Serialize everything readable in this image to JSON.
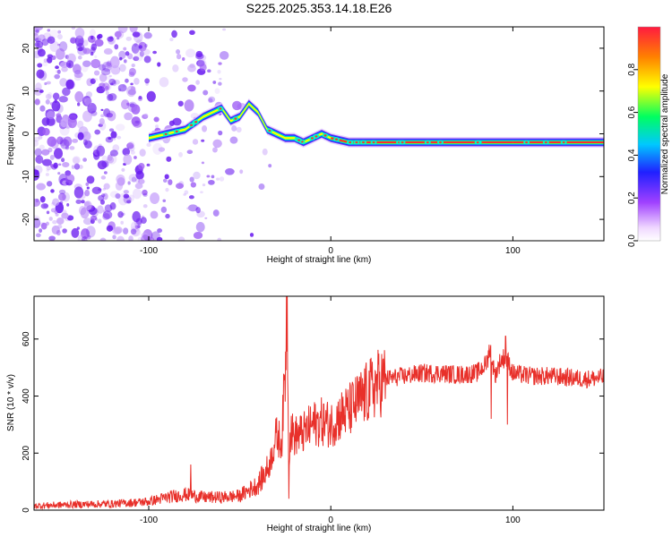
{
  "title": "S225.2025.353.14.18.E26",
  "colors": {
    "snr_line": "#e8302a",
    "spectrum_core": "#ff2a2a",
    "noise": "#7a3cf0",
    "axis": "#000000"
  },
  "chart_data": [
    {
      "type": "heatmap",
      "xlabel": "Height of straight line (km)",
      "ylabel": "Frequency (Hz)",
      "xlim": [
        -163,
        150
      ],
      "ylim": [
        -25,
        25
      ],
      "xticks": [
        -100,
        0,
        100
      ],
      "xtick_labels": [
        "-100",
        "0",
        "100"
      ],
      "yticks": [
        -20,
        -10,
        0,
        10,
        20
      ],
      "ytick_labels": [
        "-20",
        "-10",
        "0",
        "10",
        "20"
      ],
      "colorbar": {
        "label": "Normalized spectral amplitude",
        "range": [
          0,
          1
        ],
        "ticks": [
          0.0,
          0.2,
          0.4,
          0.6,
          0.8
        ],
        "tick_labels": [
          "0.0",
          "0.2",
          "0.4",
          "0.6",
          "0.8"
        ],
        "colormap": "rainbow"
      },
      "ridge": {
        "x": [
          -100,
          -90,
          -80,
          -70,
          -60,
          -55,
          -50,
          -45,
          -40,
          -35,
          -30,
          -25,
          -20,
          -15,
          -10,
          -5,
          0,
          10,
          20,
          40,
          60,
          80,
          100,
          120,
          150
        ],
        "freq": [
          -1,
          0,
          1,
          4,
          6,
          3,
          4,
          7,
          5,
          1,
          0,
          -1,
          -1,
          -2,
          -1,
          0,
          -1,
          -2,
          -2,
          -2,
          -2,
          -2,
          -2,
          -2,
          -2
        ]
      }
    },
    {
      "type": "line",
      "xlabel": "Height of straight line (km)",
      "ylabel": "SNR (10 * v/v)",
      "xlim": [
        -163,
        150
      ],
      "ylim": [
        0,
        750
      ],
      "xticks": [
        -100,
        0,
        100
      ],
      "xtick_labels": [
        "-100",
        "0",
        "100"
      ],
      "yticks": [
        0,
        200,
        400,
        600
      ],
      "ytick_labels": [
        "0",
        "200",
        "400",
        "600"
      ],
      "series": [
        {
          "name": "SNR",
          "x": [
            -163,
            -140,
            -120,
            -100,
            -90,
            -80,
            -70,
            -60,
            -50,
            -40,
            -34,
            -30,
            -27,
            -25,
            -24,
            -23,
            -22,
            -20,
            -15,
            -10,
            -5,
            0,
            5,
            10,
            15,
            20,
            25,
            30,
            40,
            50,
            60,
            70,
            80,
            85,
            88,
            90,
            93,
            96,
            100,
            110,
            120,
            130,
            140,
            150
          ],
          "y": [
            15,
            20,
            22,
            30,
            45,
            55,
            45,
            45,
            50,
            90,
            150,
            260,
            240,
            500,
            750,
            200,
            280,
            260,
            270,
            300,
            310,
            300,
            330,
            350,
            380,
            410,
            440,
            460,
            470,
            480,
            480,
            475,
            480,
            510,
            560,
            470,
            520,
            540,
            480,
            470,
            470,
            465,
            460,
            465
          ],
          "spikes": [
            {
              "x": -77,
              "y": 160
            },
            {
              "x": -24,
              "y": 750
            },
            {
              "x": -23,
              "y": 40
            },
            {
              "x": 87,
              "y": 580
            },
            {
              "x": 88,
              "y": 320
            },
            {
              "x": 96,
              "y": 610
            },
            {
              "x": 97,
              "y": 300
            }
          ]
        }
      ]
    }
  ]
}
